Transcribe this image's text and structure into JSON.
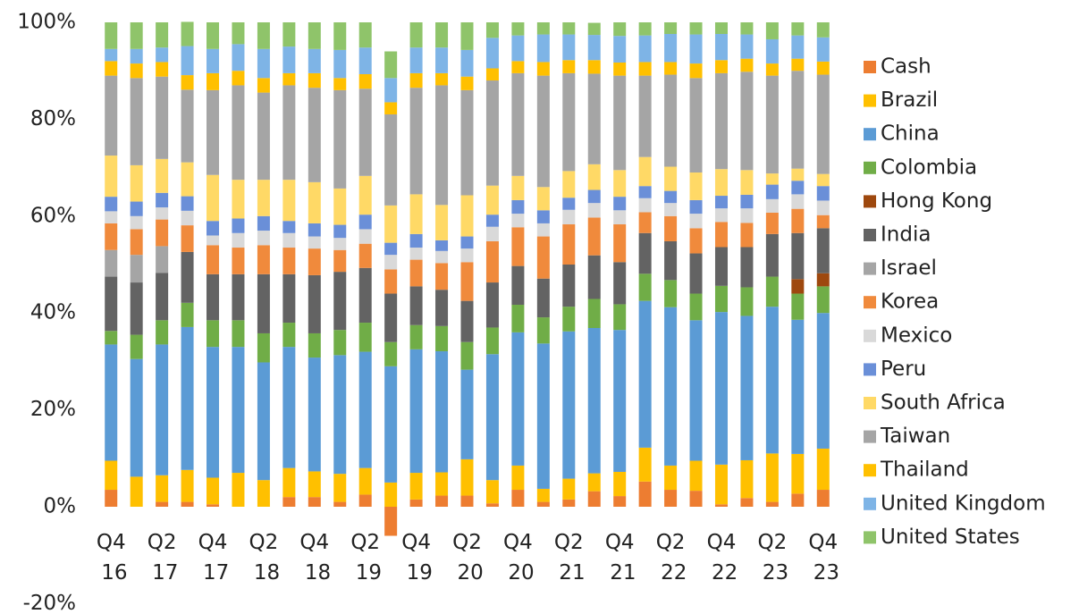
{
  "chart_data": {
    "type": "stacked_bar",
    "categories": [
      "Q4 16",
      null,
      "Q2 17",
      null,
      "Q4 17",
      null,
      "Q2 18",
      null,
      "Q4 18",
      null,
      "Q2 19",
      null,
      "Q4 19",
      null,
      "Q2 20",
      null,
      "Q4 20",
      null,
      "Q2 21",
      null,
      "Q4 21",
      null,
      "Q2 22",
      null,
      "Q4 22",
      null,
      "Q2 23",
      null,
      "Q4 23"
    ],
    "ylim": [
      -20,
      100
    ],
    "yticks": [
      {
        "value": -20,
        "label": "-20%"
      },
      {
        "value": 0,
        "label": "0%"
      },
      {
        "value": 20,
        "label": "20%"
      },
      {
        "value": 40,
        "label": "40%"
      },
      {
        "value": 60,
        "label": "60%"
      },
      {
        "value": 80,
        "label": "80%"
      },
      {
        "value": 100,
        "label": "100%"
      }
    ],
    "legend": "right",
    "series": [
      {
        "name": "Cash",
        "color": "#ed7d31",
        "values": [
          3.5,
          0,
          1,
          1,
          0.5,
          0,
          0,
          2,
          2,
          1,
          2.5,
          -6,
          1.5,
          2.3,
          2.3,
          0.7,
          3.5,
          1,
          1.5,
          3.2,
          2.2,
          5.2,
          3.5,
          3.3,
          0.5,
          1.8,
          1,
          2.7,
          3.5
        ]
      },
      {
        "name": "Brazil",
        "color": "#ffc000",
        "values": [
          6,
          6.2,
          5.5,
          6.6,
          5.5,
          7,
          5.5,
          6,
          5.3,
          5.8,
          5.5,
          5,
          5.5,
          4.8,
          7.5,
          4.8,
          5,
          2.7,
          4.3,
          3.7,
          5,
          7,
          5,
          6.2,
          8.2,
          7.8,
          10,
          8.2,
          8.5
        ]
      },
      {
        "name": "China",
        "color": "#5b9bd5",
        "values": [
          24,
          24.3,
          27,
          29.5,
          27,
          26,
          24.3,
          25,
          23.5,
          24.5,
          24,
          24,
          25.5,
          25,
          18.5,
          26,
          27.5,
          30,
          30.4,
          30,
          29.3,
          30.3,
          32.7,
          29,
          31.5,
          29.8,
          30.3,
          27.7,
          28
        ]
      },
      {
        "name": "Colombia",
        "color": "#70ad47",
        "values": [
          2.8,
          5,
          5,
          5,
          5.5,
          5.5,
          6,
          5,
          5,
          5.2,
          6,
          5,
          5,
          5.2,
          5.7,
          5.5,
          5.7,
          5.4,
          5.1,
          6,
          5.3,
          5.6,
          5.6,
          5.5,
          5.4,
          5.9,
          6.2,
          5.4,
          5.5
        ]
      },
      {
        "name": "Hong Kong",
        "color": "#9e480e",
        "values": [
          0,
          0,
          0,
          0,
          0,
          0,
          0,
          0,
          0,
          0,
          0,
          0,
          0,
          0,
          0,
          0,
          0,
          0,
          0,
          0,
          0,
          0,
          0,
          0,
          0,
          0,
          0,
          3,
          2.7
        ]
      },
      {
        "name": "India",
        "color": "#636363",
        "values": [
          11.2,
          10.8,
          9.8,
          10.5,
          9.5,
          9.5,
          12.2,
          10,
          12,
          12,
          11.3,
          10,
          8,
          7.5,
          8.5,
          9.3,
          8,
          8,
          8.7,
          9,
          8.7,
          8.4,
          8,
          8.3,
          8,
          8.3,
          8.8,
          9.5,
          9.3
        ]
      },
      {
        "name": "Israel",
        "color": "#a5a5a5",
        "values": [
          5.5,
          5.7,
          5.5,
          0,
          0,
          0,
          0,
          0,
          0,
          0,
          0,
          0,
          0,
          0,
          0,
          0,
          0,
          0,
          0,
          0,
          0,
          0,
          0,
          0,
          0,
          0,
          0,
          0,
          0
        ]
      },
      {
        "name": "Korea",
        "color": "#f08a3c",
        "values": [
          5.5,
          5.3,
          5.5,
          5.5,
          6,
          5.5,
          6,
          5.5,
          5.5,
          4.5,
          5,
          5,
          5.5,
          5.5,
          8,
          8.5,
          8,
          8.7,
          8.3,
          7.8,
          7.8,
          4.3,
          5.2,
          5.2,
          5.2,
          5,
          4.4,
          5,
          2.7
        ]
      },
      {
        "name": "Mexico",
        "color": "#d9d9d9",
        "values": [
          2.5,
          2.7,
          2.5,
          3,
          2,
          3,
          3,
          3,
          2.5,
          2.5,
          3,
          3,
          2.5,
          2.5,
          2.8,
          3,
          2.8,
          2.7,
          3,
          3,
          2.9,
          2.9,
          2.7,
          3,
          2.8,
          3,
          2.8,
          3,
          3
        ]
      },
      {
        "name": "Peru",
        "color": "#6a8fd8",
        "values": [
          3,
          3,
          3,
          3,
          3,
          3,
          3,
          2.5,
          2.7,
          2.7,
          3,
          2.5,
          2.8,
          2.2,
          2.5,
          2.5,
          2.8,
          2.7,
          2.5,
          2.7,
          2.8,
          2.5,
          2.5,
          2.8,
          2.6,
          2.8,
          3,
          2.8,
          3
        ]
      },
      {
        "name": "South Africa",
        "color": "#ffd966",
        "values": [
          8.5,
          7.5,
          7,
          7,
          9.5,
          8,
          7.5,
          8.5,
          8.5,
          7.5,
          8,
          7.7,
          8.2,
          7.3,
          8.5,
          6,
          5,
          4.8,
          5.5,
          5.3,
          5.5,
          6,
          5,
          5.7,
          5.5,
          5.1,
          2.3,
          2.5,
          2.5
        ]
      },
      {
        "name": "Taiwan",
        "color": "#a5a5a5",
        "values": [
          16.5,
          18,
          17,
          15,
          17.5,
          19.5,
          18,
          19.5,
          19.5,
          20.3,
          18,
          18.8,
          22,
          24.7,
          21.7,
          21.7,
          21.2,
          23,
          20.2,
          18.7,
          19.5,
          16.8,
          19,
          19.5,
          19.8,
          20.3,
          20.2,
          20.2,
          20.5
        ]
      },
      {
        "name": "Thailand",
        "color": "#ffc000",
        "values": [
          3,
          3,
          3,
          3,
          3.5,
          3,
          3,
          2.5,
          3,
          2.5,
          3,
          2.5,
          3,
          2.5,
          2.8,
          2.5,
          2.5,
          2.8,
          2.7,
          2.8,
          2.7,
          2.8,
          2.6,
          3,
          2.7,
          2.7,
          2.5,
          2.5,
          2.7
        ]
      },
      {
        "name": "United Kingdom",
        "color": "#7eb4e6",
        "values": [
          2.5,
          3,
          3,
          6,
          5,
          5.5,
          6,
          5.5,
          5,
          5.8,
          5.5,
          5,
          5.3,
          5.3,
          5.5,
          6.3,
          5.3,
          5.7,
          5.3,
          5.2,
          5.5,
          5.5,
          5.8,
          6,
          5.4,
          5,
          5,
          4.8,
          5
        ]
      },
      {
        "name": "United States",
        "color": "#8fc46a",
        "values": [
          5.5,
          5.5,
          5.2,
          5,
          5.5,
          4.5,
          5.5,
          5,
          5.5,
          5.7,
          5.2,
          5.5,
          5.2,
          5.2,
          5.7,
          3.2,
          2.7,
          2.5,
          2.5,
          2.5,
          2.8,
          2.7,
          2.4,
          2.5,
          2.4,
          2.5,
          3.5,
          2.7,
          3.1
        ]
      }
    ]
  }
}
